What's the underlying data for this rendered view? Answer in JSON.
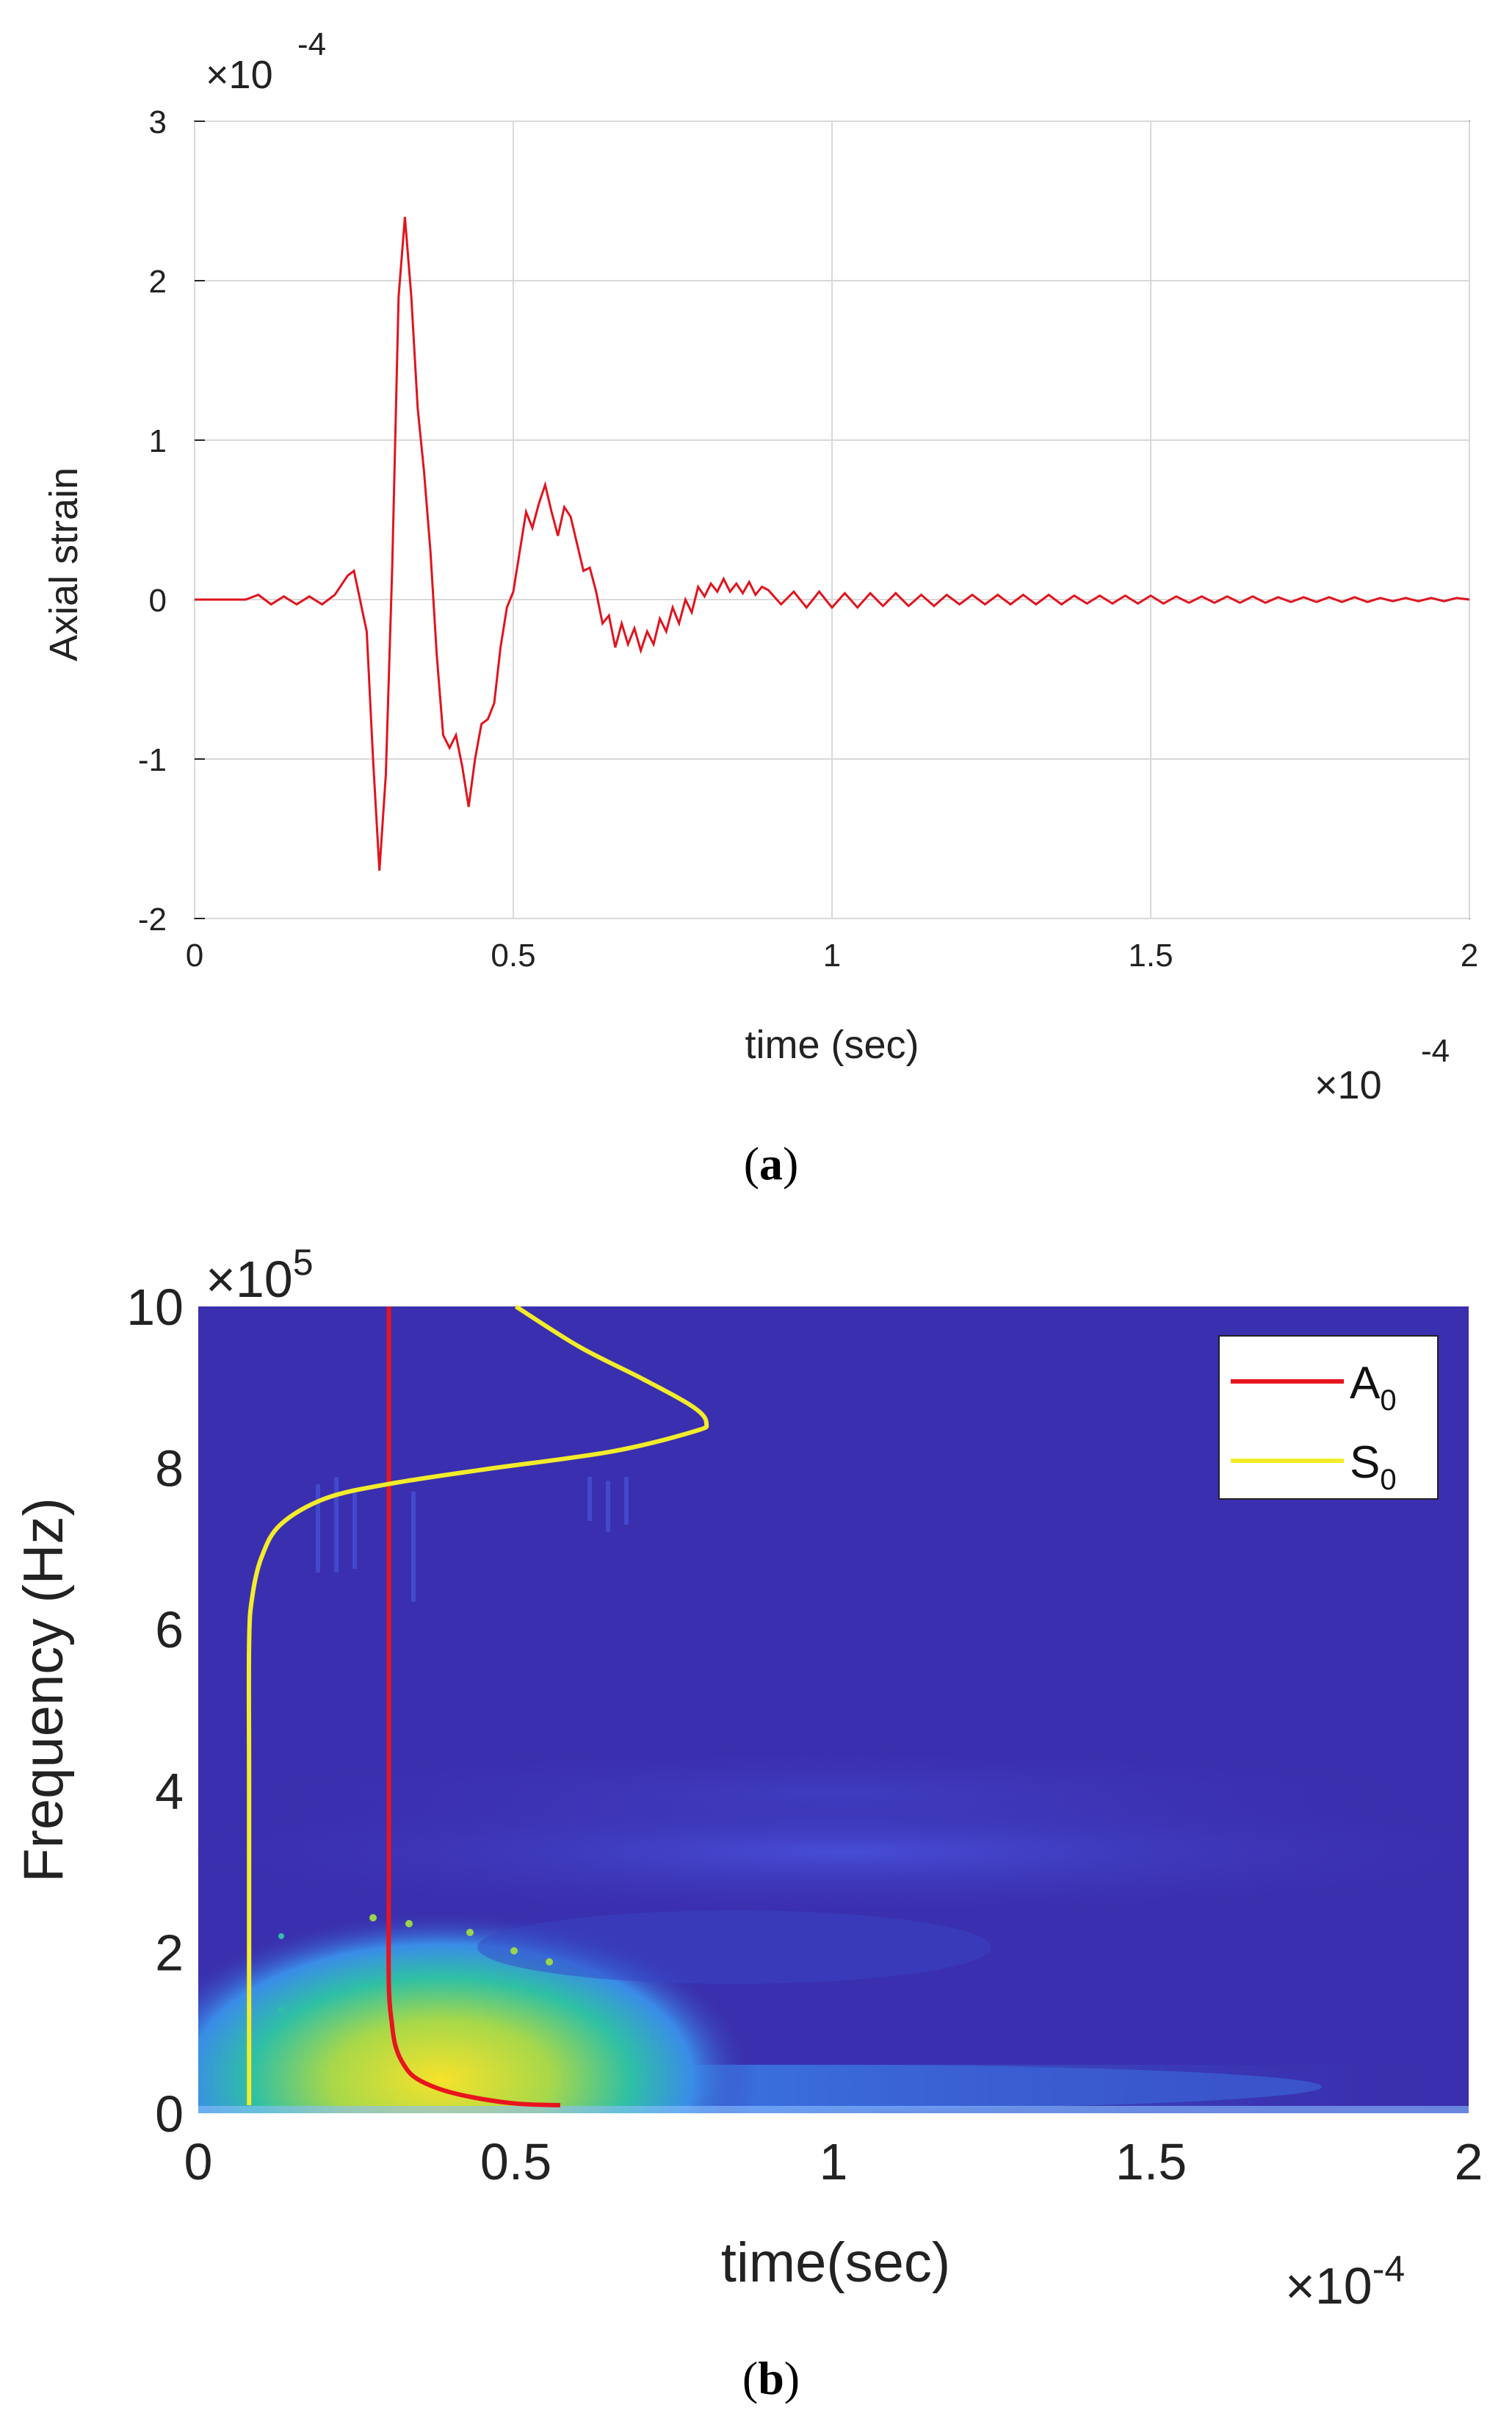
{
  "colors": {
    "signal": "#e0141e",
    "a0": "#e8141e",
    "s0": "#f2ec2a",
    "grid": "#d9d9d9",
    "background_b": "#3a2fae"
  },
  "chart_data": [
    {
      "panel_caption": "a",
      "type": "line",
      "title": "",
      "xlabel": "time (sec)",
      "ylabel": "Axial strain",
      "x_multiplier": "×10",
      "x_multiplier_exp": "-4",
      "y_multiplier": "×10",
      "y_multiplier_exp": "-4",
      "xlim": [
        0,
        2
      ],
      "ylim": [
        -2,
        3
      ],
      "xticks": [
        "0",
        "0.5",
        "1",
        "1.5",
        "2"
      ],
      "yticks": [
        "-2",
        "-1",
        "0",
        "1",
        "2",
        "3"
      ],
      "grid": true,
      "series": [
        {
          "name": "Axial strain",
          "x": [
            0,
            0.08,
            0.1,
            0.12,
            0.14,
            0.16,
            0.18,
            0.2,
            0.22,
            0.24,
            0.25,
            0.27,
            0.28,
            0.29,
            0.3,
            0.31,
            0.32,
            0.33,
            0.34,
            0.35,
            0.36,
            0.37,
            0.38,
            0.39,
            0.4,
            0.41,
            0.42,
            0.43,
            0.44,
            0.45,
            0.46,
            0.47,
            0.48,
            0.49,
            0.5,
            0.51,
            0.52,
            0.53,
            0.54,
            0.55,
            0.56,
            0.57,
            0.58,
            0.59,
            0.6,
            0.61,
            0.62,
            0.63,
            0.64,
            0.65,
            0.66,
            0.67,
            0.68,
            0.69,
            0.7,
            0.71,
            0.72,
            0.73,
            0.74,
            0.75,
            0.76,
            0.77,
            0.78,
            0.79,
            0.8,
            0.81,
            0.82,
            0.83,
            0.84,
            0.85,
            0.86,
            0.87,
            0.88,
            0.89,
            0.9,
            0.92,
            0.94,
            0.96,
            0.98,
            1.0,
            1.02,
            1.04,
            1.06,
            1.08,
            1.1,
            1.12,
            1.14,
            1.16,
            1.18,
            1.2,
            1.22,
            1.24,
            1.26,
            1.28,
            1.3,
            1.32,
            1.34,
            1.36,
            1.38,
            1.4,
            1.42,
            1.44,
            1.46,
            1.48,
            1.5,
            1.52,
            1.54,
            1.56,
            1.58,
            1.6,
            1.62,
            1.64,
            1.66,
            1.68,
            1.7,
            1.72,
            1.74,
            1.76,
            1.78,
            1.8,
            1.82,
            1.84,
            1.86,
            1.88,
            1.9,
            1.92,
            1.94,
            1.96,
            1.98,
            2.0
          ],
          "values": [
            0,
            0,
            0.03,
            -0.03,
            0.02,
            -0.03,
            0.02,
            -0.03,
            0.03,
            0.15,
            0.18,
            -0.2,
            -1.0,
            -1.7,
            -1.1,
            0.2,
            1.9,
            2.4,
            1.9,
            1.2,
            0.8,
            0.3,
            -0.35,
            -0.85,
            -0.93,
            -0.85,
            -1.05,
            -1.3,
            -1.0,
            -0.78,
            -0.75,
            -0.65,
            -0.3,
            -0.05,
            0.05,
            0.3,
            0.55,
            0.45,
            0.6,
            0.72,
            0.55,
            0.4,
            0.58,
            0.52,
            0.35,
            0.18,
            0.2,
            0.05,
            -0.15,
            -0.1,
            -0.3,
            -0.15,
            -0.28,
            -0.18,
            -0.32,
            -0.2,
            -0.28,
            -0.12,
            -0.2,
            -0.05,
            -0.15,
            0.0,
            -0.08,
            0.08,
            0.02,
            0.1,
            0.05,
            0.13,
            0.05,
            0.1,
            0.04,
            0.11,
            0.03,
            0.08,
            0.06,
            -0.03,
            0.05,
            -0.05,
            0.05,
            -0.05,
            0.04,
            -0.05,
            0.04,
            -0.04,
            0.04,
            -0.04,
            0.03,
            -0.04,
            0.03,
            -0.03,
            0.03,
            -0.03,
            0.03,
            -0.03,
            0.03,
            -0.03,
            0.03,
            -0.03,
            0.025,
            -0.025,
            0.025,
            -0.025,
            0.025,
            -0.025,
            0.025,
            -0.025,
            0.02,
            -0.02,
            0.02,
            -0.02,
            0.02,
            -0.02,
            0.02,
            -0.02,
            0.015,
            -0.015,
            0.015,
            -0.015,
            0.015,
            -0.015,
            0.015,
            -0.015,
            0.01,
            -0.01,
            0.01,
            -0.01,
            0.01,
            -0.01,
            0.01,
            0
          ]
        }
      ]
    },
    {
      "panel_caption": "b",
      "type": "heatmap",
      "title": "",
      "xlabel": "time(sec)",
      "ylabel": "Frequency (Hz)",
      "x_multiplier": "×10",
      "x_multiplier_exp": "-4",
      "y_multiplier": "×10",
      "y_multiplier_exp": "5",
      "xlim": [
        0,
        2
      ],
      "ylim": [
        0,
        10
      ],
      "xticks": [
        "0",
        "0.5",
        "1",
        "1.5",
        "2"
      ],
      "yticks": [
        "0",
        "2",
        "4",
        "6",
        "8",
        "10"
      ],
      "legend_position": "top-right",
      "series": [
        {
          "name": "A",
          "subscript": "0",
          "points": [
            [
              0.57,
              0.1
            ],
            [
              0.5,
              0.12
            ],
            [
              0.43,
              0.2
            ],
            [
              0.38,
              0.3
            ],
            [
              0.34,
              0.45
            ],
            [
              0.32,
              0.65
            ],
            [
              0.31,
              0.85
            ],
            [
              0.305,
              1.1
            ],
            [
              0.3,
              1.6
            ],
            [
              0.3,
              3
            ],
            [
              0.3,
              6
            ],
            [
              0.3,
              10
            ]
          ]
        },
        {
          "name": "S",
          "subscript": "0",
          "points": [
            [
              0.08,
              0.1
            ],
            [
              0.08,
              4
            ],
            [
              0.08,
              5.8
            ],
            [
              0.085,
              6.4
            ],
            [
              0.1,
              6.9
            ],
            [
              0.13,
              7.3
            ],
            [
              0.2,
              7.62
            ],
            [
              0.3,
              7.8
            ],
            [
              0.45,
              7.98
            ],
            [
              0.65,
              8.2
            ],
            [
              0.78,
              8.45
            ],
            [
              0.8,
              8.55
            ],
            [
              0.78,
              8.75
            ],
            [
              0.7,
              9.1
            ],
            [
              0.6,
              9.5
            ],
            [
              0.5,
              10
            ]
          ]
        }
      ]
    }
  ]
}
